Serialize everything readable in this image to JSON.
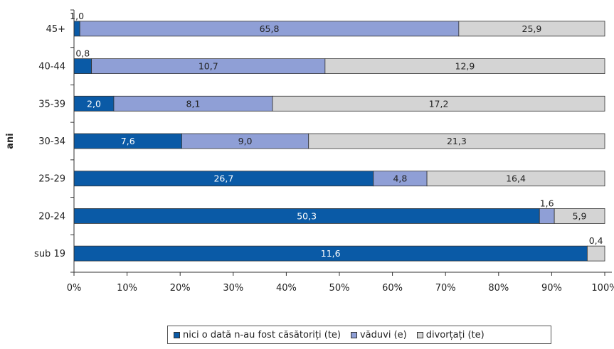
{
  "chart_data": {
    "type": "bar",
    "orientation": "horizontal",
    "stacked": true,
    "ylabel": "ani",
    "categories": [
      "45+",
      "40-44",
      "35-39",
      "30-34",
      "25-29",
      "20-24",
      "sub 19"
    ],
    "series": [
      {
        "name": "nici o dată n-au fost căsătoriți (te)",
        "color": "#0a5aa6",
        "values": [
          1.0,
          0.8,
          2.0,
          7.6,
          26.7,
          50.3,
          11.6
        ],
        "share_pct": [
          1.1,
          3.3,
          7.5,
          20.3,
          56.4,
          87.7,
          96.7
        ]
      },
      {
        "name": "văduvi (e)",
        "color": "#8f9fd6",
        "values": [
          65.8,
          10.7,
          8.1,
          9.0,
          4.8,
          1.6,
          null
        ],
        "share_pct": [
          71.4,
          44.0,
          29.9,
          23.9,
          10.1,
          2.8,
          0
        ]
      },
      {
        "name": "divorțați (te)",
        "color": "#d4d4d4",
        "values": [
          25.9,
          12.9,
          17.2,
          21.3,
          16.4,
          5.9,
          0.4
        ],
        "share_pct": [
          27.5,
          52.7,
          62.6,
          55.8,
          33.5,
          9.5,
          3.3
        ]
      }
    ],
    "xticks": [
      "0%",
      "10%",
      "20%",
      "30%",
      "40%",
      "50%",
      "60%",
      "70%",
      "80%",
      "90%",
      "100%"
    ],
    "xlim": [
      0,
      100
    ],
    "grid": false,
    "legend_position": "bottom"
  },
  "legend": {
    "items": [
      {
        "label": "nici o dată n-au fost căsătoriți (te)",
        "color": "#0a5aa6"
      },
      {
        "label": "văduvi (e)",
        "color": "#8f9fd6"
      },
      {
        "label": "divorțați (te)",
        "color": "#d4d4d4"
      }
    ]
  }
}
